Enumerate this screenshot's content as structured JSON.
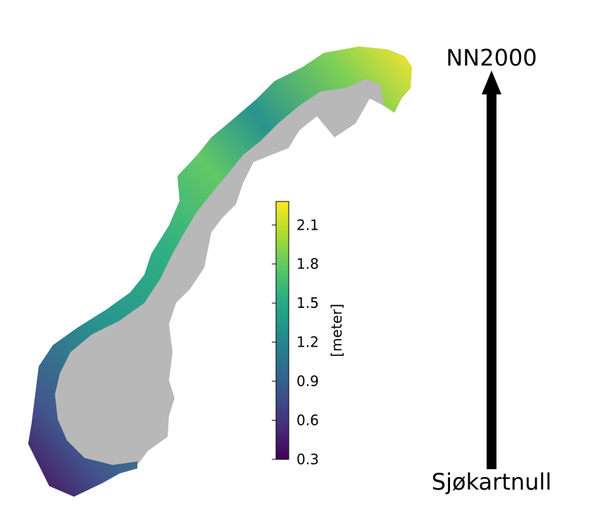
{
  "map": {
    "land_color": "#b8b8b8",
    "colormap": "viridis"
  },
  "colorbar": {
    "label": "[meter]",
    "min": 0.3,
    "max": 2.28,
    "ticks": [
      "0.3",
      "0.6",
      "0.9",
      "1.2",
      "1.5",
      "1.8",
      "2.1"
    ],
    "colors": [
      "#440154",
      "#472d7b",
      "#3b528b",
      "#2c728e",
      "#21918c",
      "#28ae80",
      "#5ec962",
      "#addc30",
      "#fde725"
    ]
  },
  "arrow": {
    "top_label": "NN2000",
    "bottom_label": "Sjøkartnull",
    "color": "#000000"
  }
}
